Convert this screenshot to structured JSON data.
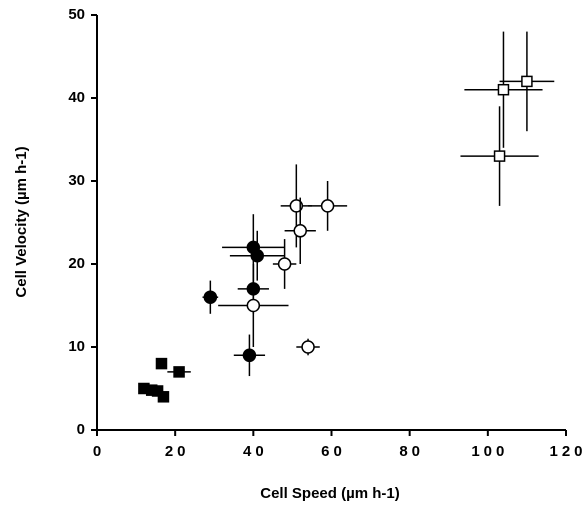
{
  "chart_data": {
    "type": "scatter",
    "x_label": "Cell Speed  (µm  h-1)",
    "y_label": "Cell Velocity (µm h-1)",
    "xlim": [
      0,
      120
    ],
    "xticks": [
      0,
      20,
      40,
      60,
      80,
      100,
      120
    ],
    "ylim": [
      0,
      50
    ],
    "yticks": [
      0,
      10,
      20,
      30,
      40,
      50
    ],
    "series": [
      {
        "marker": "square",
        "color": "#000000",
        "fill": "#000000",
        "x": [
          12,
          14,
          15.5,
          16.5,
          17,
          21
        ],
        "values": [
          5,
          4.8,
          4.7,
          8,
          4,
          7
        ],
        "xerr": [
          null,
          null,
          null,
          null,
          null,
          3
        ],
        "yerr": [
          null,
          null,
          null,
          null,
          null,
          null
        ]
      },
      {
        "marker": "circle",
        "color": "#000000",
        "fill": "#000000",
        "x": [
          29,
          40,
          41,
          40,
          39
        ],
        "values": [
          16,
          22,
          21,
          17,
          9
        ],
        "xerr": [
          2,
          8,
          7,
          4,
          4
        ],
        "yerr": [
          2,
          4,
          3,
          3,
          2.5
        ]
      },
      {
        "marker": "circle",
        "color": "#000000",
        "fill": "#ffffff",
        "x": [
          51,
          59,
          52,
          48,
          40,
          54
        ],
        "values": [
          27,
          27,
          24,
          20,
          15,
          10
        ],
        "xerr": [
          4,
          5,
          4,
          3,
          9,
          3
        ],
        "yerr": [
          5,
          3,
          4,
          3,
          5,
          1
        ]
      },
      {
        "marker": "square",
        "color": "#000000",
        "fill": "#ffffff",
        "x": [
          104,
          110,
          103
        ],
        "values": [
          41,
          42,
          33
        ],
        "xerr": [
          10,
          7,
          10
        ],
        "yerr": [
          7,
          6,
          6
        ]
      }
    ]
  }
}
